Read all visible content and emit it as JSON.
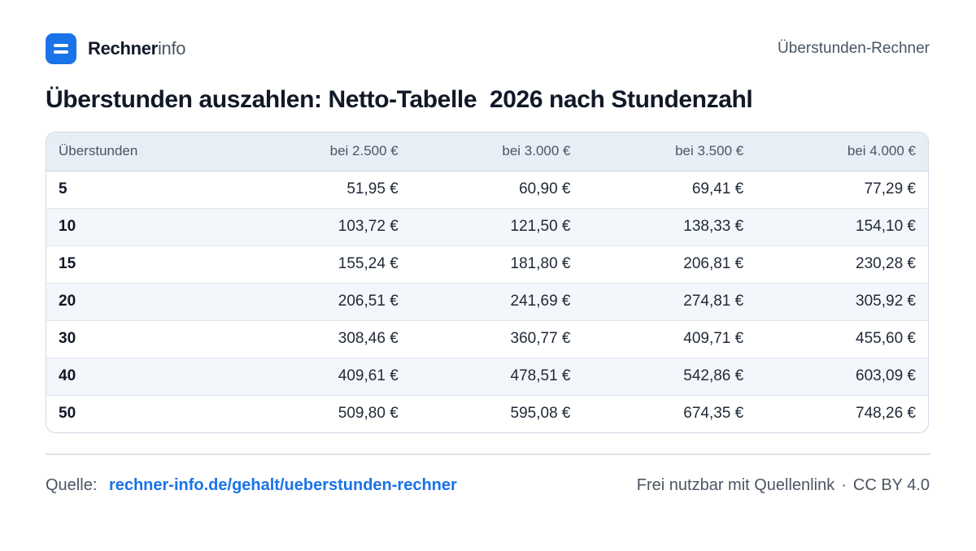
{
  "header": {
    "brand_strong": "Rechner",
    "brand_light": "info",
    "section": "Überstunden-Rechner"
  },
  "title": "Überstunden auszahlen: Netto-Tabelle  2026 nach Stundenzahl",
  "chart_data": {
    "type": "table",
    "title": "Überstunden auszahlen: Netto-Tabelle  2026 nach Stundenzahl",
    "columns": [
      "Überstunden",
      "bei 2.500 €",
      "bei 3.000 €",
      "bei 3.500 €",
      "bei 4.000 €"
    ],
    "rows": [
      [
        "5",
        "51,95 €",
        "60,90 €",
        "69,41 €",
        "77,29 €"
      ],
      [
        "10",
        "103,72 €",
        "121,50 €",
        "138,33 €",
        "154,10 €"
      ],
      [
        "15",
        "155,24 €",
        "181,80 €",
        "206,81 €",
        "230,28 €"
      ],
      [
        "20",
        "206,51 €",
        "241,69 €",
        "274,81 €",
        "305,92 €"
      ],
      [
        "30",
        "308,46 €",
        "360,77 €",
        "409,71 €",
        "455,60 €"
      ],
      [
        "40",
        "409,61 €",
        "478,51 €",
        "542,86 €",
        "603,09 €"
      ],
      [
        "50",
        "509,80 €",
        "595,08 €",
        "674,35 €",
        "748,26 €"
      ]
    ]
  },
  "footer": {
    "source_label": "Quelle:",
    "source_link": "rechner-info.de/gehalt/ueberstunden-rechner",
    "license_text": "Frei nutzbar mit Quellenlink",
    "separator": "·",
    "license": "CC BY 4.0"
  },
  "colors": {
    "accent": "#1a73e8",
    "header_bg": "#e8eef6",
    "row_alt_bg": "#f3f6fa"
  },
  "icons": {
    "logo": "menu-lines-icon"
  }
}
